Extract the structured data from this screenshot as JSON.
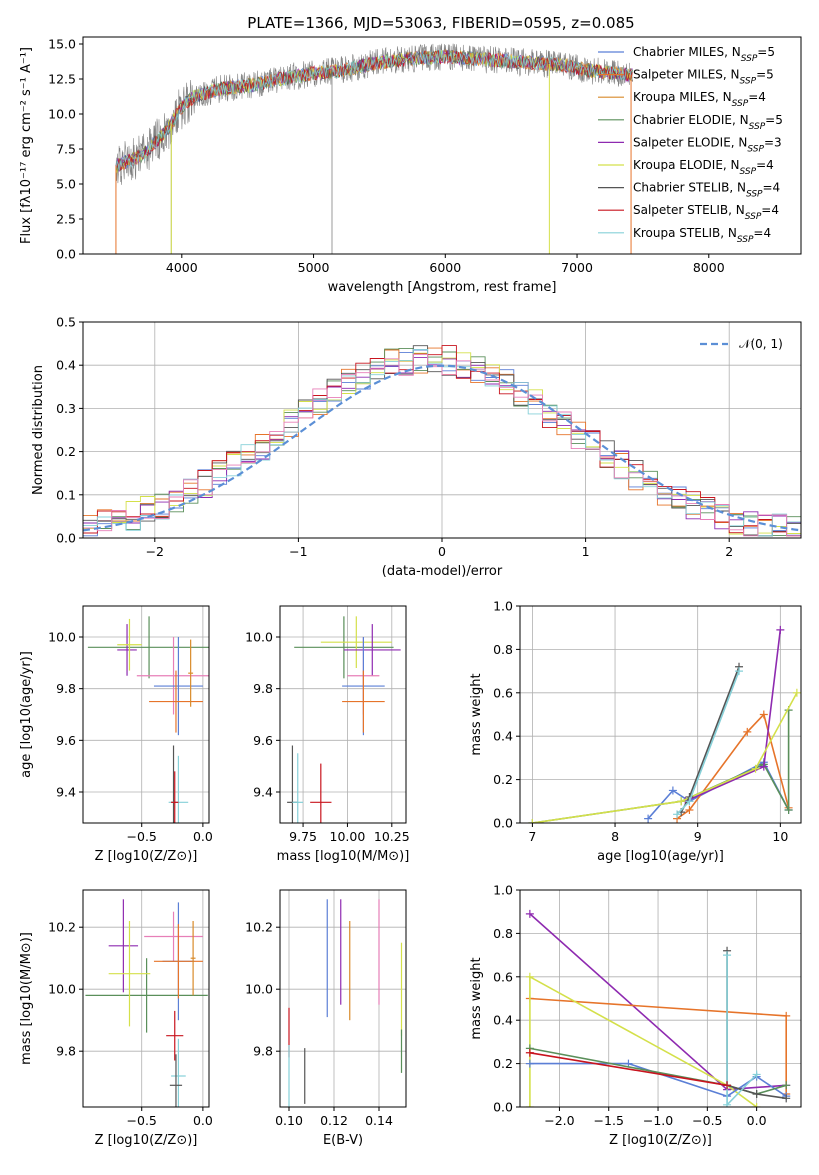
{
  "title": "PLATE=1366, MJD=53063, FIBERID=0595, z=0.085",
  "colors": {
    "Chabrier MILES": "#5b7fd6",
    "Salpeter MILES": "#e6742a",
    "Kroupa MILES": "#d88a2a",
    "Chabrier ELODIE": "#5a8f5a",
    "Salpeter ELODIE": "#8e2ab0",
    "Kroupa ELODIE": "#d4e04a",
    "Chabrier STELIB": "#555555",
    "Salpeter STELIB": "#c8141e",
    "Kroupa STELIB": "#86d0d8",
    "pink": "#e77fb8",
    "grid": "#b0b0b0"
  },
  "chart_data": [
    {
      "type": "line",
      "name": "spectrum",
      "xlabel": "wavelength [Angstrom, rest frame]",
      "ylabel": "Flux [fλ10⁻¹⁷ erg cm⁻² s⁻¹ A⁻¹]",
      "xlim": [
        3250,
        8700
      ],
      "ylim": [
        0,
        15.5
      ],
      "xticks": [
        4000,
        5000,
        6000,
        7000,
        8000
      ],
      "yticks": [
        0.0,
        2.5,
        5.0,
        7.5,
        10.0,
        12.5,
        15.0
      ],
      "legend_position": "right",
      "legend": [
        "Chabrier MILES, N_SSP=5",
        "Salpeter MILES, N_SSP=5",
        "Kroupa MILES, N_SSP=4",
        "Chabrier ELODIE, N_SSP=5",
        "Salpeter ELODIE, N_SSP=3",
        "Kroupa ELODIE, N_SSP=4",
        "Chabrier STELIB, N_SSP=4",
        "Salpeter STELIB, N_SSP=4",
        "Kroupa STELIB, N_SSP=4"
      ],
      "continuum_wavelength": [
        3500,
        3700,
        3900,
        4000,
        4100,
        4300,
        4500,
        4800,
        5000,
        5200,
        5500,
        5800,
        6000,
        6300,
        6600,
        6900,
        7100,
        7300,
        7400
      ],
      "continuum_flux": [
        6.3,
        7.0,
        9.0,
        10.5,
        11.3,
        11.8,
        12.0,
        12.6,
        12.9,
        13.1,
        13.7,
        14.0,
        14.1,
        13.9,
        13.7,
        13.5,
        13.1,
        12.9,
        12.8
      ]
    },
    {
      "type": "histogram",
      "name": "residuals",
      "xlabel": "(data-model)/error",
      "ylabel": "Normed distribution",
      "xlim": [
        -2.5,
        2.5
      ],
      "ylim": [
        0,
        0.5
      ],
      "xticks": [
        -2,
        -1,
        0,
        1,
        2
      ],
      "yticks": [
        0.0,
        0.1,
        0.2,
        0.3,
        0.4,
        0.5
      ],
      "legend": [
        "N(0,1)"
      ],
      "legend_position": "top-right",
      "bin_width": 0.1
    },
    {
      "type": "scatter",
      "name": "age-Z",
      "xlabel": "Z [log10(Z/Z⊙)]",
      "ylabel": "age  [log10(age/yr)]",
      "xlim": [
        -0.98,
        0.05
      ],
      "ylim": [
        9.28,
        10.12
      ],
      "xticks": [
        -0.5,
        0.0
      ],
      "yticks": [
        9.4,
        9.6,
        9.8,
        10.0
      ],
      "points": [
        {
          "model": "Chabrier ELODIE",
          "x": -0.44,
          "y": 9.96,
          "xerr": 0.5,
          "yerr": 0.12
        },
        {
          "model": "Salpeter ELODIE",
          "x": -0.62,
          "y": 9.95,
          "xerr": 0.08,
          "yerr": 0.1
        },
        {
          "model": "Kroupa ELODIE",
          "x": -0.6,
          "y": 9.97,
          "xerr": 0.1,
          "yerr": 0.1
        },
        {
          "model": "pink",
          "x": -0.24,
          "y": 9.85,
          "xerr": 0.3,
          "yerr": 0.15
        },
        {
          "model": "Chabrier MILES",
          "x": -0.2,
          "y": 9.81,
          "xerr": 0.2,
          "yerr": 0.19
        },
        {
          "model": "Salpeter MILES",
          "x": -0.22,
          "y": 9.75,
          "xerr": 0.22,
          "yerr": 0.12
        },
        {
          "model": "Kroupa MILES",
          "x": -0.1,
          "y": 9.86,
          "xerr": 0.02,
          "yerr": 0.13
        },
        {
          "model": "Chabrier STELIB",
          "x": -0.24,
          "y": 9.36,
          "xerr": 0.02,
          "yerr": 0.22
        },
        {
          "model": "Kroupa STELIB",
          "x": -0.2,
          "y": 9.36,
          "xerr": 0.08,
          "yerr": 0.18
        },
        {
          "model": "Salpeter STELIB",
          "x": -0.23,
          "y": 9.36,
          "xerr": 0.03,
          "yerr": 0.12
        }
      ]
    },
    {
      "type": "scatter",
      "name": "age-mass",
      "xlabel": "mass [log10(M/M⊙)]",
      "xlim": [
        9.62,
        10.33
      ],
      "ylim": [
        9.28,
        10.12
      ],
      "xticks": [
        9.75,
        10.0,
        10.25
      ],
      "yticks": [
        9.4,
        9.6,
        9.8,
        10.0
      ],
      "points": [
        {
          "model": "Chabrier ELODIE",
          "x": 9.98,
          "y": 9.96,
          "xerr": 0.28,
          "yerr": 0.12
        },
        {
          "model": "Kroupa ELODIE",
          "x": 10.05,
          "y": 9.98,
          "xerr": 0.2,
          "yerr": 0.1
        },
        {
          "model": "Salpeter ELODIE",
          "x": 10.14,
          "y": 9.95,
          "xerr": 0.16,
          "yerr": 0.1
        },
        {
          "model": "pink",
          "x": 10.09,
          "y": 9.85,
          "xerr": 0.09,
          "yerr": 0.15
        },
        {
          "model": "Chabrier MILES",
          "x": 10.09,
          "y": 9.81,
          "xerr": 0.12,
          "yerr": 0.19
        },
        {
          "model": "Salpeter MILES",
          "x": 10.09,
          "y": 9.75,
          "xerr": 0.12,
          "yerr": 0.12
        },
        {
          "model": "Chabrier STELIB",
          "x": 9.69,
          "y": 9.36,
          "xerr": 0.03,
          "yerr": 0.22
        },
        {
          "model": "Kroupa STELIB",
          "x": 9.72,
          "y": 9.36,
          "xerr": 0.03,
          "yerr": 0.19
        },
        {
          "model": "Salpeter STELIB",
          "x": 9.85,
          "y": 9.36,
          "xerr": 0.06,
          "yerr": 0.15
        }
      ]
    },
    {
      "type": "line",
      "name": "mass-weight-age",
      "xlabel": "age  [log10(age/yr)]",
      "ylabel": "mass weight",
      "xlim": [
        6.85,
        10.25
      ],
      "ylim": [
        0,
        1
      ],
      "xticks": [
        7,
        8,
        9,
        10
      ],
      "yticks": [
        0.0,
        0.2,
        0.4,
        0.6,
        0.8,
        1.0
      ],
      "series": [
        {
          "model": "Chabrier MILES",
          "x": [
            8.4,
            8.7,
            8.9,
            9.8,
            10.1
          ],
          "y": [
            0.02,
            0.15,
            0.1,
            0.28,
            0.06
          ]
        },
        {
          "model": "Salpeter MILES",
          "x": [
            8.75,
            8.9,
            9.6,
            9.8,
            10.1
          ],
          "y": [
            0.02,
            0.06,
            0.42,
            0.5,
            0.07
          ]
        },
        {
          "model": "Chabrier ELODIE",
          "x": [
            7.0,
            8.8,
            9.8,
            10.1,
            10.1
          ],
          "y": [
            0.0,
            0.1,
            0.27,
            0.06,
            0.52
          ]
        },
        {
          "model": "Salpeter ELODIE",
          "x": [
            8.85,
            9.8,
            10.0
          ],
          "y": [
            0.1,
            0.26,
            0.89
          ]
        },
        {
          "model": "Kroupa ELODIE",
          "x": [
            7.0,
            8.8,
            9.7,
            10.2
          ],
          "y": [
            0.0,
            0.1,
            0.25,
            0.6
          ]
        },
        {
          "model": "Chabrier STELIB",
          "x": [
            8.8,
            8.9,
            9.5
          ],
          "y": [
            0.05,
            0.12,
            0.72
          ]
        },
        {
          "model": "Kroupa STELIB",
          "x": [
            8.75,
            8.9,
            9.5
          ],
          "y": [
            0.04,
            0.1,
            0.7
          ]
        }
      ]
    },
    {
      "type": "scatter",
      "name": "mass-Z",
      "xlabel": "Z [log10(Z/Z⊙)]",
      "ylabel": "mass [log10(M/M⊙)]",
      "xlim": [
        -0.98,
        0.05
      ],
      "ylim": [
        9.62,
        10.32
      ],
      "xticks": [
        -0.5,
        0.0
      ],
      "yticks": [
        9.8,
        10.0,
        10.2
      ],
      "points": [
        {
          "model": "Chabrier ELODIE",
          "x": -0.46,
          "y": 9.98,
          "xerr": 0.5,
          "yerr": 0.12
        },
        {
          "model": "Salpeter ELODIE",
          "x": -0.65,
          "y": 10.14,
          "xerr": 0.12,
          "yerr": 0.15
        },
        {
          "model": "Kroupa ELODIE",
          "x": -0.6,
          "y": 10.05,
          "xerr": 0.17,
          "yerr": 0.17
        },
        {
          "model": "pink",
          "x": -0.24,
          "y": 10.17,
          "xerr": 0.24,
          "yerr": 0.08
        },
        {
          "model": "Chabrier MILES",
          "x": -0.2,
          "y": 10.09,
          "xerr": 0.13,
          "yerr": 0.19
        },
        {
          "model": "Salpeter MILES",
          "x": -0.2,
          "y": 10.09,
          "xerr": 0.2,
          "yerr": 0.12
        },
        {
          "model": "Kroupa MILES",
          "x": -0.08,
          "y": 10.1,
          "xerr": 0.02,
          "yerr": 0.12
        },
        {
          "model": "Salpeter STELIB",
          "x": -0.23,
          "y": 9.85,
          "xerr": 0.07,
          "yerr": 0.08
        },
        {
          "model": "Kroupa STELIB",
          "x": -0.2,
          "y": 9.72,
          "xerr": 0.06,
          "yerr": 0.12
        },
        {
          "model": "Chabrier STELIB",
          "x": -0.22,
          "y": 9.69,
          "xerr": 0.05,
          "yerr": 0.1
        }
      ]
    },
    {
      "type": "scatter",
      "name": "mass-EBV",
      "xlabel": "E(B-V)",
      "xlim": [
        0.096,
        0.152
      ],
      "ylim": [
        9.62,
        10.32
      ],
      "xticks": [
        0.1,
        0.12,
        0.14
      ],
      "yticks": [
        9.8,
        10.0,
        10.2
      ],
      "points": [
        {
          "model": "Chabrier MILES",
          "x": 0.117,
          "y": 10.1,
          "xerr": 0,
          "yerr": 0.19
        },
        {
          "model": "Salpeter ELODIE",
          "x": 0.123,
          "y": 10.12,
          "xerr": 0,
          "yerr": 0.17
        },
        {
          "model": "Kroupa MILES",
          "x": 0.127,
          "y": 10.06,
          "xerr": 0,
          "yerr": 0.16
        },
        {
          "model": "pink",
          "x": 0.14,
          "y": 10.12,
          "xerr": 0,
          "yerr": 0.17
        },
        {
          "model": "Kroupa ELODIE",
          "x": 0.15,
          "y": 10.0,
          "xerr": 0,
          "yerr": 0.15
        },
        {
          "model": "Chabrier ELODIE",
          "x": 0.15,
          "y": 9.8,
          "xerr": 0,
          "yerr": 0.07
        },
        {
          "model": "Salpeter STELIB",
          "x": 0.1,
          "y": 9.86,
          "xerr": 0,
          "yerr": 0.08
        },
        {
          "model": "Kroupa STELIB",
          "x": 0.1,
          "y": 9.72,
          "xerr": 0,
          "yerr": 0.1
        },
        {
          "model": "Chabrier STELIB",
          "x": 0.107,
          "y": 9.72,
          "xerr": 0,
          "yerr": 0.09
        }
      ]
    },
    {
      "type": "line",
      "name": "mass-weight-Z",
      "xlabel": "Z [log10(Z/Z⊙)]",
      "ylabel": "mass weight",
      "xlim": [
        -2.4,
        0.45
      ],
      "ylim": [
        0,
        1
      ],
      "xticks": [
        -2.0,
        -1.5,
        -1.0,
        -0.5,
        0.0
      ],
      "yticks": [
        0.0,
        0.2,
        0.4,
        0.6,
        0.8,
        1.0
      ],
      "series": [
        {
          "model": "Salpeter ELODIE",
          "x": [
            -2.3,
            -0.3,
            0.3
          ],
          "y": [
            0.89,
            0.08,
            0.1
          ]
        },
        {
          "model": "Salpeter MILES",
          "x": [
            -2.3,
            0.3,
            0.3
          ],
          "y": [
            0.5,
            0.42,
            0.06
          ]
        },
        {
          "model": "Kroupa ELODIE",
          "x": [
            -2.3,
            -2.3,
            -0.3,
            0.0
          ],
          "y": [
            0.0,
            0.6,
            0.1,
            0.0
          ]
        },
        {
          "model": "Chabrier MILES",
          "x": [
            -2.3,
            -1.3,
            -0.3,
            0.0,
            0.3
          ],
          "y": [
            0.2,
            0.2,
            0.05,
            0.14,
            0.05
          ]
        },
        {
          "model": "Chabrier ELODIE",
          "x": [
            -2.3,
            -0.3,
            0.0,
            0.3
          ],
          "y": [
            0.27,
            0.1,
            0.06,
            0.1
          ]
        },
        {
          "model": "Chabrier STELIB",
          "x": [
            -0.3,
            -0.3,
            0.0,
            0.3
          ],
          "y": [
            0.72,
            0.1,
            0.06,
            0.04
          ]
        },
        {
          "model": "Kroupa STELIB",
          "x": [
            -0.3,
            -0.3,
            0.0
          ],
          "y": [
            0.7,
            0.01,
            0.15
          ]
        },
        {
          "model": "Salpeter STELIB",
          "x": [
            -2.3,
            -0.3
          ],
          "y": [
            0.25,
            0.1
          ]
        }
      ]
    }
  ]
}
